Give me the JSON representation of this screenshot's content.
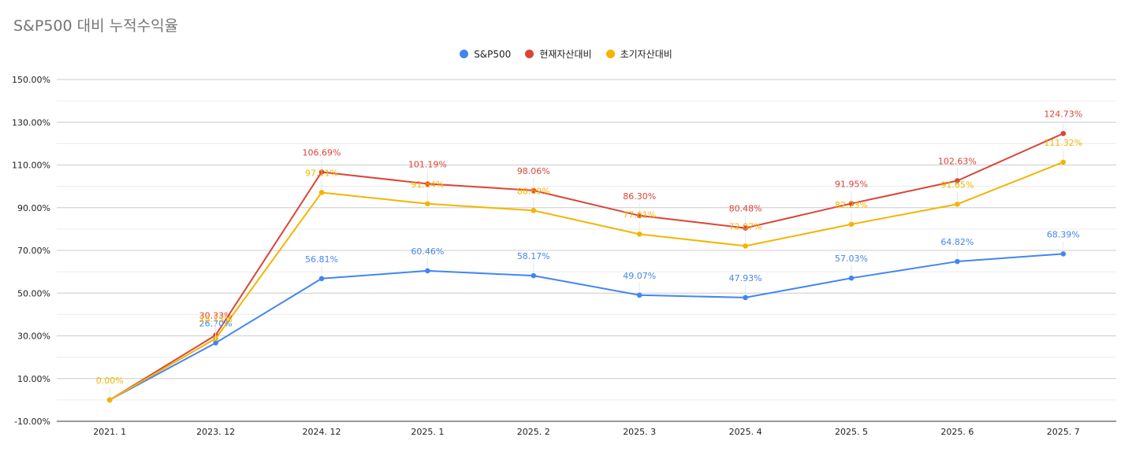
{
  "chart_data": {
    "type": "line",
    "title": "S&P500 대비 누적수익율",
    "categories": [
      "2021. 1",
      "2023. 12",
      "2024. 12",
      "2025. 1",
      "2025. 2",
      "2025. 3",
      "2025. 4",
      "2025. 5",
      "2025. 6",
      "2025. 7"
    ],
    "ylim": [
      -10,
      150
    ],
    "yticks": [
      -10,
      10,
      30,
      50,
      70,
      90,
      110,
      130,
      150
    ],
    "ytick_labels": [
      "-10.00%",
      "10.00%",
      "30.00%",
      "50.00%",
      "70.00%",
      "90.00%",
      "110.00%",
      "130.00%",
      "150.00%"
    ],
    "grid": true,
    "legend_position": "top-center",
    "series": [
      {
        "name": "S&P500",
        "color": "#4285f4",
        "values": [
          0,
          26.7,
          56.81,
          60.46,
          58.17,
          49.07,
          47.93,
          57.03,
          64.82,
          68.39
        ],
        "labels": [
          "",
          "26.70%",
          "56.81%",
          "60.46%",
          "58.17%",
          "49.07%",
          "47.93%",
          "57.03%",
          "64.82%",
          "68.39%"
        ]
      },
      {
        "name": "현재자산대비",
        "color": "#db4437",
        "values": [
          0,
          30.33,
          106.69,
          101.19,
          98.06,
          86.3,
          80.48,
          91.95,
          102.63,
          124.73
        ],
        "labels": [
          "",
          "30.33%",
          "106.69%",
          "101.19%",
          "98.06%",
          "86.30%",
          "80.48%",
          "91.95%",
          "102.63%",
          "124.73%"
        ]
      },
      {
        "name": "초기자산대비",
        "color": "#f4b400",
        "values": [
          0,
          28.73,
          97.11,
          91.84,
          88.69,
          77.61,
          72.07,
          82.23,
          91.65,
          111.32
        ],
        "labels": [
          "0.00%",
          "28.73%",
          "97.11%",
          "91.84%",
          "88.69%",
          "77.61%",
          "72.07%",
          "82.23%",
          "91.65%",
          "111.32%"
        ]
      }
    ]
  }
}
